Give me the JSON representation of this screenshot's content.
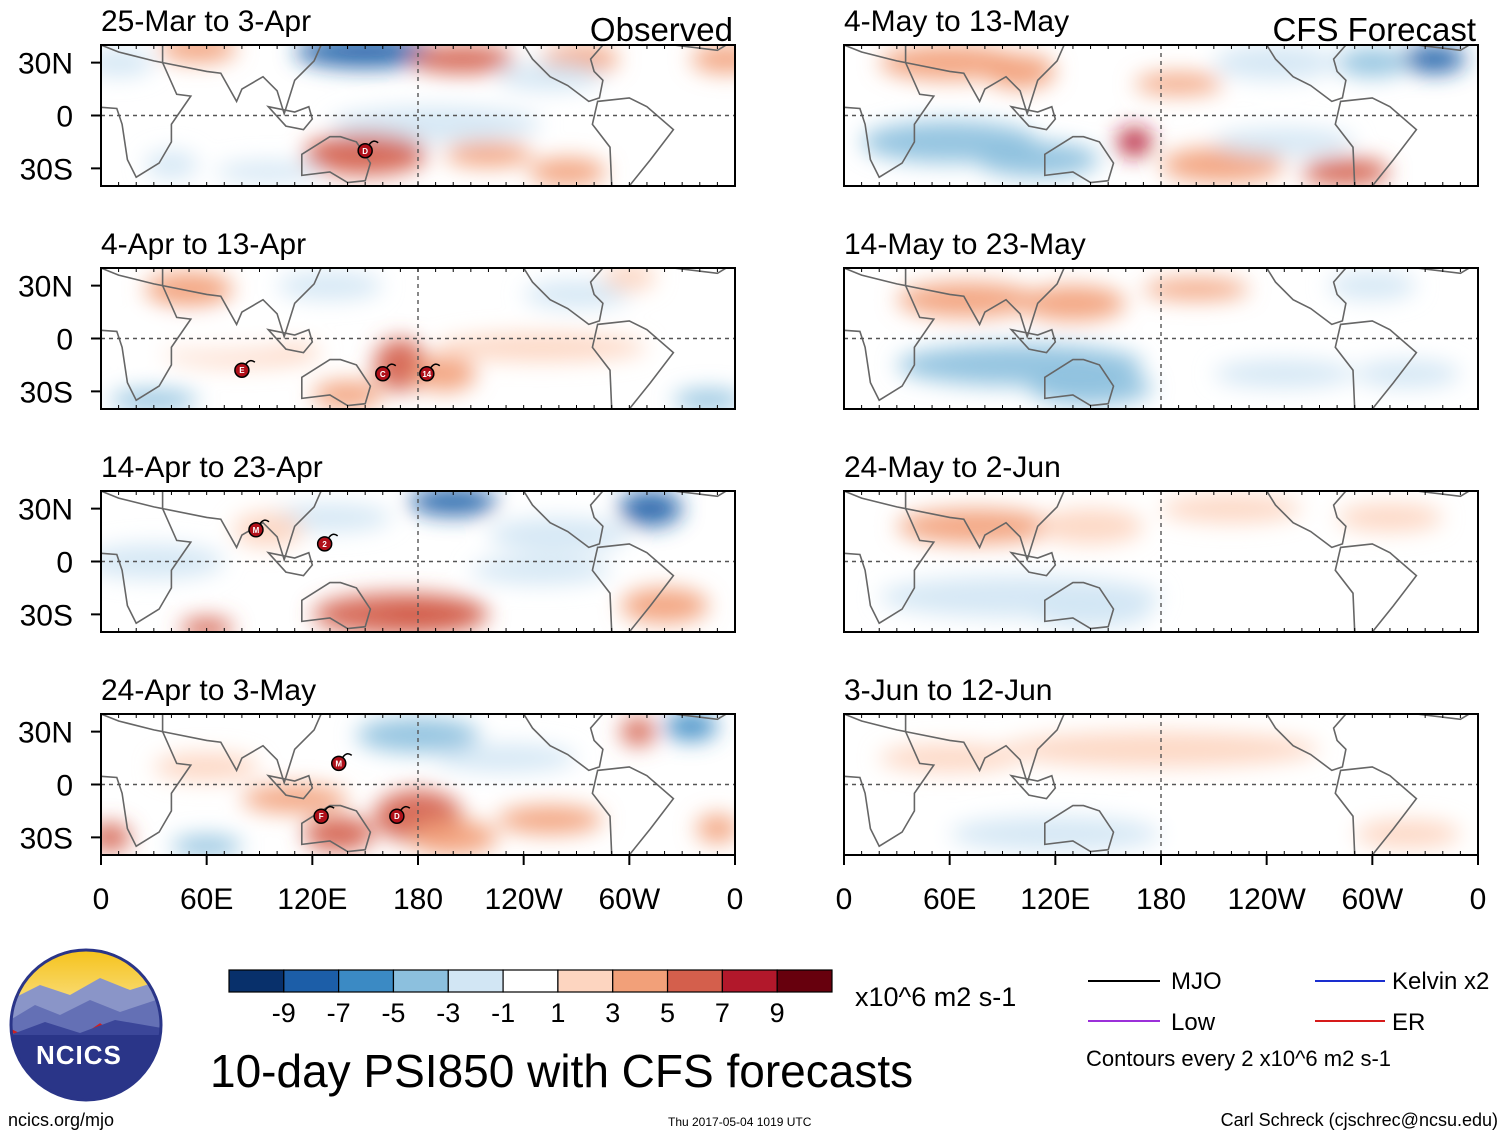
{
  "title": "10-day PSI850 with CFS forecasts",
  "panel_headers": {
    "left": "Observed",
    "right": "CFS Forecast"
  },
  "panels": [
    {
      "label": "25-Mar to 3-Apr",
      "column": "observed"
    },
    {
      "label": "4-Apr to 13-Apr",
      "column": "observed"
    },
    {
      "label": "14-Apr to 23-Apr",
      "column": "observed"
    },
    {
      "label": "24-Apr to 3-May",
      "column": "observed"
    },
    {
      "label": "4-May to 13-May",
      "column": "forecast"
    },
    {
      "label": "14-May to 23-May",
      "column": "forecast"
    },
    {
      "label": "24-May to 2-Jun",
      "column": "forecast"
    },
    {
      "label": "3-Jun to 12-Jun",
      "column": "forecast"
    }
  ],
  "chart_data": {
    "type": "heatmap",
    "variable": "PSI850",
    "x_ticks": [
      "0",
      "60E",
      "120E",
      "180",
      "120W",
      "60W",
      "0"
    ],
    "y_ticks": [
      "30N",
      "0",
      "30S"
    ],
    "colorbar": {
      "ticks": [
        "-9",
        "-7",
        "-5",
        "-3",
        "-1",
        "1",
        "3",
        "5",
        "7",
        "9"
      ],
      "units": "x10^6 m2 s-1",
      "colors": [
        "#08306b",
        "#1c5ea8",
        "#3b8ac4",
        "#8cc0de",
        "#d2e6f4",
        "#ffffff",
        "#fdd5c0",
        "#f2a079",
        "#d45f4c",
        "#b2182b",
        "#67000d"
      ]
    },
    "storm_markers": [
      {
        "panel": 0,
        "label": "D"
      },
      {
        "panel": 1,
        "label": "E"
      },
      {
        "panel": 1,
        "label": "C"
      },
      {
        "panel": 1,
        "label": "14"
      },
      {
        "panel": 2,
        "label": "M"
      },
      {
        "panel": 2,
        "label": "2"
      },
      {
        "panel": 3,
        "label": "M"
      },
      {
        "panel": 3,
        "label": "F"
      },
      {
        "panel": 3,
        "label": "D"
      }
    ]
  },
  "legend": {
    "items": [
      {
        "label": "MJO",
        "color": "#000000"
      },
      {
        "label": "Kelvin x2",
        "color": "#1a2ecf"
      },
      {
        "label": "Low",
        "color": "#9b30d9"
      },
      {
        "label": "ER",
        "color": "#d61a1a"
      }
    ],
    "contour_note": "Contours every 2 x10^6 m2 s-1"
  },
  "logo": {
    "text": "NCICS"
  },
  "footer": {
    "url": "ncics.org/mjo",
    "timestamp": "Thu 2017-05-04 1019 UTC",
    "author": "Carl Schreck (cjschrec@ncsu.edu)"
  }
}
